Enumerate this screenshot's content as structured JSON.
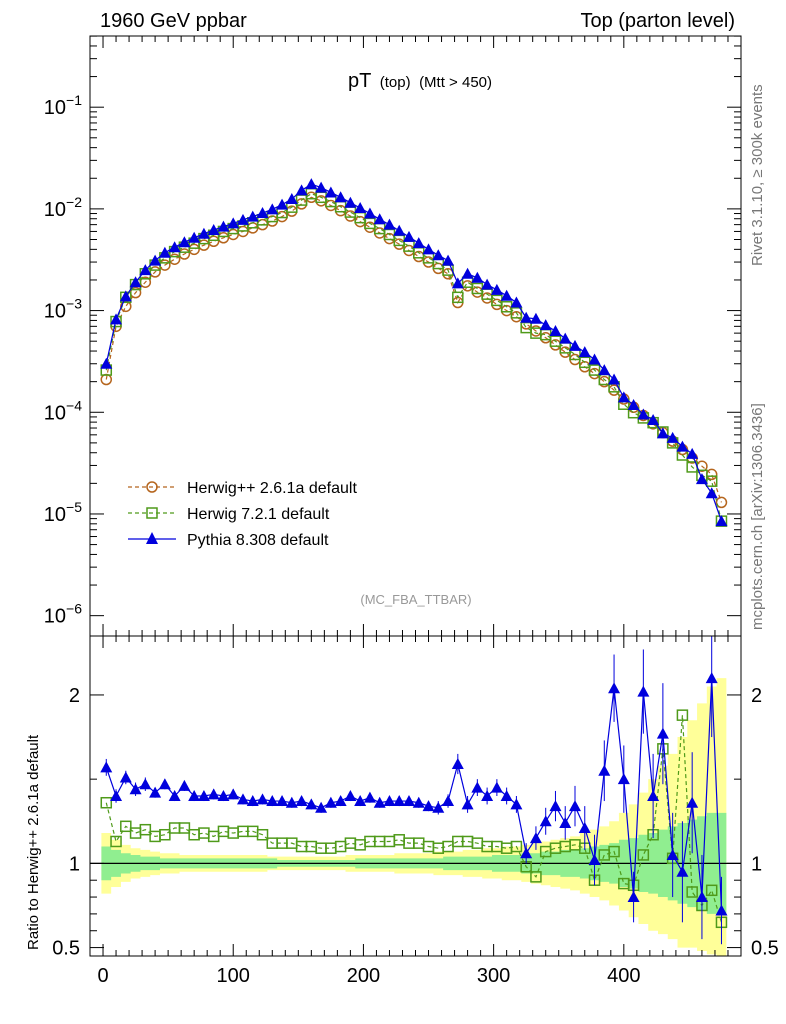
{
  "header": {
    "left_title": "1960 GeV ppbar",
    "right_title": "Top (parton level)"
  },
  "plot_title": {
    "main": "pT",
    "sub": "(top)",
    "extra": "(Mtt > 450)"
  },
  "analysis_label": "(MC_FBA_TTBAR)",
  "side_labels": {
    "rivet": "Rivet 3.1.10, ≥ 300k events",
    "mcplots": "mcplots.cern.ch [arXiv:1306.3436]"
  },
  "ratio_ylabel": "Ratio to Herwig++ 2.6.1a default",
  "legend": [
    {
      "label": "Herwig++ 2.6.1a default",
      "color": "#b5651d",
      "marker": "open-circle",
      "style": "dashed"
    },
    {
      "label": "Herwig 7.2.1 default",
      "color": "#4f9a1a",
      "marker": "open-square",
      "style": "dashed"
    },
    {
      "label": "Pythia 8.308 default",
      "color": "#0000dd",
      "marker": "filled-triangle",
      "style": "solid"
    }
  ],
  "colors": {
    "band_inner": "#90ee90",
    "band_outer": "#ffff99",
    "herwigpp": "#b5651d",
    "herwig7": "#4f9a1a",
    "pythia": "#0000dd"
  },
  "chart_data": {
    "type": "line",
    "title": "pT (top) (Mtt > 450)",
    "xlabel": "",
    "ylabel": "",
    "x_ticks": [
      "0",
      "100",
      "200",
      "300",
      "400"
    ],
    "main_y_ticks": [
      "10^-6",
      "10^-5",
      "10^-4",
      "10^-3",
      "10^-2",
      "10^-1"
    ],
    "ratio_y_ticks": [
      "0.5",
      "1",
      "2"
    ],
    "xlim": [
      -10,
      490
    ],
    "main_ylog_range": [
      -6.2,
      -0.3
    ],
    "ratio_ylim": [
      0.45,
      2.35
    ],
    "x": [
      2.5,
      10,
      17.5,
      25,
      32.5,
      40,
      47.5,
      55,
      62.5,
      70,
      77.5,
      85,
      92.5,
      100,
      107.5,
      115,
      122.5,
      130,
      137.5,
      145,
      152.5,
      160,
      167.5,
      175,
      182.5,
      190,
      197.5,
      205,
      212.5,
      220,
      227.5,
      235,
      242.5,
      250,
      257.5,
      265,
      272.5,
      280,
      287.5,
      295,
      302.5,
      310,
      317.5,
      325,
      332.5,
      340,
      347.5,
      355,
      362.5,
      370,
      377.5,
      385,
      392.5,
      400,
      407.5,
      415,
      422.5,
      430,
      437.5,
      445,
      452.5,
      460,
      467.5,
      475
    ],
    "series": [
      {
        "name": "Herwig++ 2.6.1a default",
        "values": [
          0.00021,
          0.0007,
          0.0011,
          0.0015,
          0.0019,
          0.0024,
          0.0028,
          0.0032,
          0.0036,
          0.004,
          0.0044,
          0.0048,
          0.0052,
          0.0056,
          0.006,
          0.0065,
          0.007,
          0.0076,
          0.0084,
          0.0095,
          0.0112,
          0.013,
          0.012,
          0.0108,
          0.0096,
          0.0085,
          0.0075,
          0.0066,
          0.0058,
          0.0051,
          0.0045,
          0.0039,
          0.0034,
          0.003,
          0.0026,
          0.0023,
          0.0012,
          0.00175,
          0.00152,
          0.00133,
          0.00115,
          0.001,
          0.00087,
          0.00074,
          0.00063,
          0.00054,
          0.00046,
          0.00039,
          0.00033,
          0.00028,
          0.00024,
          0.0002,
          0.000165,
          0.000135,
          0.000112,
          9.3e-05,
          7.7e-05,
          6.3e-05,
          5.2e-05,
          4.3e-05,
          3.55e-05,
          2.95e-05,
          2.45e-05,
          1.3e-05
        ],
        "ratio": [
          1,
          1,
          1,
          1,
          1,
          1,
          1,
          1,
          1,
          1,
          1,
          1,
          1,
          1,
          1,
          1,
          1,
          1,
          1,
          1,
          1,
          1,
          1,
          1,
          1,
          1,
          1,
          1,
          1,
          1,
          1,
          1,
          1,
          1,
          1,
          1,
          1,
          1,
          1,
          1,
          1,
          1,
          1,
          1,
          1,
          1,
          1,
          1,
          1,
          1,
          1,
          1,
          1,
          1,
          1,
          1,
          1,
          1,
          1,
          1,
          1,
          1,
          1,
          1
        ]
      },
      {
        "name": "Herwig 7.2.1 default",
        "values": [
          0.00026,
          0.00078,
          0.00135,
          0.0018,
          0.0023,
          0.0028,
          0.0033,
          0.0038,
          0.0042,
          0.0046,
          0.0051,
          0.0055,
          0.006,
          0.0064,
          0.0068,
          0.0073,
          0.0078,
          0.0084,
          0.0092,
          0.0104,
          0.0122,
          0.0141,
          0.013,
          0.0118,
          0.0105,
          0.0093,
          0.0082,
          0.0072,
          0.0064,
          0.0056,
          0.0049,
          0.0043,
          0.0037,
          0.0033,
          0.0029,
          0.0025,
          0.00135,
          0.0019,
          0.00165,
          0.00145,
          0.00126,
          0.00109,
          0.00095,
          0.00068,
          0.0006,
          0.00058,
          0.0005,
          0.00043,
          0.00037,
          0.00031,
          0.00026,
          0.00021,
          0.000178,
          0.00012,
          9.9e-05,
          8.8e-05,
          7.9e-05,
          6.4e-05,
          5e-05,
          3.8e-05,
          2.9e-05,
          2.4e-05,
          2.1e-05,
          8.5e-06
        ],
        "ratio": [
          1.36,
          1.13,
          1.22,
          1.18,
          1.2,
          1.16,
          1.17,
          1.21,
          1.21,
          1.17,
          1.18,
          1.16,
          1.19,
          1.18,
          1.19,
          1.19,
          1.17,
          1.12,
          1.12,
          1.12,
          1.1,
          1.1,
          1.09,
          1.09,
          1.1,
          1.12,
          1.11,
          1.13,
          1.13,
          1.13,
          1.14,
          1.12,
          1.12,
          1.1,
          1.09,
          1.1,
          1.13,
          1.13,
          1.12,
          1.1,
          1.1,
          1.09,
          1.1,
          0.98,
          0.92,
          1.07,
          1.09,
          1.1,
          1.11,
          1.09,
          0.9,
          1.05,
          1.07,
          0.88,
          0.87,
          1.05,
          1.17,
          1.68,
          1.03,
          1.88,
          0.83,
          0.75,
          0.84,
          0.65
        ]
      },
      {
        "name": "Pythia 8.308 default",
        "values": [
          0.0003,
          0.00082,
          0.00138,
          0.0019,
          0.0025,
          0.0031,
          0.0037,
          0.0042,
          0.0047,
          0.0052,
          0.0057,
          0.0062,
          0.0067,
          0.0072,
          0.0078,
          0.0084,
          0.0091,
          0.0099,
          0.011,
          0.0125,
          0.0152,
          0.0175,
          0.0162,
          0.0145,
          0.013,
          0.0115,
          0.0102,
          0.009,
          0.0079,
          0.007,
          0.0061,
          0.0053,
          0.0046,
          0.004,
          0.0035,
          0.0031,
          0.00185,
          0.0023,
          0.0021,
          0.0018,
          0.0016,
          0.0014,
          0.0012,
          0.00085,
          0.00083,
          0.00072,
          0.00063,
          0.00053,
          0.00045,
          0.00039,
          0.00033,
          0.00026,
          0.00021,
          0.00014,
          0.000118,
          9.5e-05,
          8.4e-05,
          6.2e-05,
          5.6e-05,
          4.6e-05,
          3.9e-05,
          2.2e-05,
          1.6e-05,
          8.5e-06
        ],
        "ratio": [
          1.57,
          1.4,
          1.51,
          1.44,
          1.47,
          1.42,
          1.47,
          1.4,
          1.46,
          1.4,
          1.4,
          1.41,
          1.4,
          1.41,
          1.38,
          1.37,
          1.38,
          1.37,
          1.37,
          1.36,
          1.37,
          1.35,
          1.33,
          1.36,
          1.37,
          1.4,
          1.37,
          1.39,
          1.36,
          1.37,
          1.37,
          1.37,
          1.36,
          1.34,
          1.33,
          1.37,
          1.59,
          1.35,
          1.45,
          1.4,
          1.45,
          1.4,
          1.35,
          1.06,
          1.15,
          1.25,
          1.34,
          1.24,
          1.34,
          1.21,
          1.02,
          1.55,
          2.04,
          1.5,
          0.8,
          2.02,
          1.4,
          1.77,
          1.05,
          0.95,
          1.36,
          0.8,
          2.1,
          0.72
        ],
        "ratio_errors": [
          0.05,
          0.04,
          0.04,
          0.04,
          0.04,
          0.03,
          0.03,
          0.03,
          0.03,
          0.03,
          0.03,
          0.03,
          0.03,
          0.03,
          0.03,
          0.03,
          0.03,
          0.03,
          0.03,
          0.03,
          0.03,
          0.03,
          0.03,
          0.03,
          0.03,
          0.03,
          0.03,
          0.03,
          0.03,
          0.03,
          0.03,
          0.03,
          0.03,
          0.03,
          0.04,
          0.04,
          0.06,
          0.05,
          0.05,
          0.05,
          0.05,
          0.05,
          0.05,
          0.06,
          0.07,
          0.08,
          0.09,
          0.1,
          0.12,
          0.13,
          0.15,
          0.18,
          0.2,
          0.2,
          0.15,
          0.25,
          0.25,
          0.3,
          0.25,
          0.3,
          0.3,
          0.25,
          0.35,
          0.2
        ]
      }
    ],
    "band_inner": {
      "low": [
        0.9,
        0.92,
        0.94,
        0.95,
        0.96,
        0.96,
        0.97,
        0.97,
        0.97,
        0.97,
        0.97,
        0.97,
        0.97,
        0.97,
        0.97,
        0.97,
        0.97,
        0.97,
        0.98,
        0.98,
        0.98,
        0.98,
        0.98,
        0.98,
        0.98,
        0.98,
        0.97,
        0.97,
        0.97,
        0.97,
        0.97,
        0.97,
        0.97,
        0.97,
        0.97,
        0.96,
        0.96,
        0.96,
        0.96,
        0.96,
        0.95,
        0.95,
        0.95,
        0.94,
        0.94,
        0.93,
        0.93,
        0.92,
        0.92,
        0.91,
        0.9,
        0.89,
        0.88,
        0.86,
        0.85,
        0.83,
        0.82,
        0.8,
        0.78,
        0.76,
        0.74,
        0.72,
        0.7,
        0.7
      ],
      "high": [
        1.1,
        1.08,
        1.06,
        1.05,
        1.04,
        1.04,
        1.03,
        1.03,
        1.03,
        1.03,
        1.03,
        1.03,
        1.03,
        1.03,
        1.03,
        1.03,
        1.03,
        1.03,
        1.02,
        1.02,
        1.02,
        1.02,
        1.02,
        1.02,
        1.02,
        1.02,
        1.03,
        1.03,
        1.03,
        1.03,
        1.03,
        1.03,
        1.03,
        1.03,
        1.03,
        1.04,
        1.04,
        1.04,
        1.04,
        1.04,
        1.05,
        1.05,
        1.05,
        1.06,
        1.06,
        1.07,
        1.07,
        1.08,
        1.08,
        1.09,
        1.1,
        1.11,
        1.12,
        1.14,
        1.15,
        1.17,
        1.18,
        1.2,
        1.22,
        1.24,
        1.26,
        1.28,
        1.3,
        1.3
      ]
    },
    "band_outer": {
      "low": [
        0.82,
        0.86,
        0.89,
        0.91,
        0.92,
        0.93,
        0.94,
        0.94,
        0.95,
        0.95,
        0.95,
        0.95,
        0.95,
        0.95,
        0.95,
        0.95,
        0.95,
        0.96,
        0.96,
        0.96,
        0.96,
        0.96,
        0.96,
        0.96,
        0.96,
        0.95,
        0.95,
        0.95,
        0.95,
        0.95,
        0.94,
        0.94,
        0.94,
        0.94,
        0.93,
        0.93,
        0.93,
        0.92,
        0.92,
        0.91,
        0.91,
        0.9,
        0.9,
        0.89,
        0.88,
        0.87,
        0.86,
        0.85,
        0.84,
        0.82,
        0.8,
        0.78,
        0.75,
        0.72,
        0.68,
        0.64,
        0.6,
        0.58,
        0.55,
        0.5,
        0.5,
        0.48,
        0.46,
        0.45
      ],
      "high": [
        1.18,
        1.14,
        1.11,
        1.09,
        1.08,
        1.07,
        1.06,
        1.06,
        1.05,
        1.05,
        1.05,
        1.05,
        1.05,
        1.05,
        1.05,
        1.05,
        1.05,
        1.04,
        1.04,
        1.04,
        1.04,
        1.04,
        1.04,
        1.04,
        1.04,
        1.05,
        1.05,
        1.05,
        1.05,
        1.05,
        1.06,
        1.06,
        1.06,
        1.06,
        1.07,
        1.07,
        1.07,
        1.08,
        1.08,
        1.09,
        1.09,
        1.1,
        1.1,
        1.11,
        1.12,
        1.13,
        1.14,
        1.15,
        1.16,
        1.18,
        1.2,
        1.22,
        1.25,
        1.3,
        1.35,
        1.42,
        1.5,
        1.58,
        1.65,
        1.75,
        1.85,
        1.95,
        2.05,
        2.1
      ]
    }
  }
}
